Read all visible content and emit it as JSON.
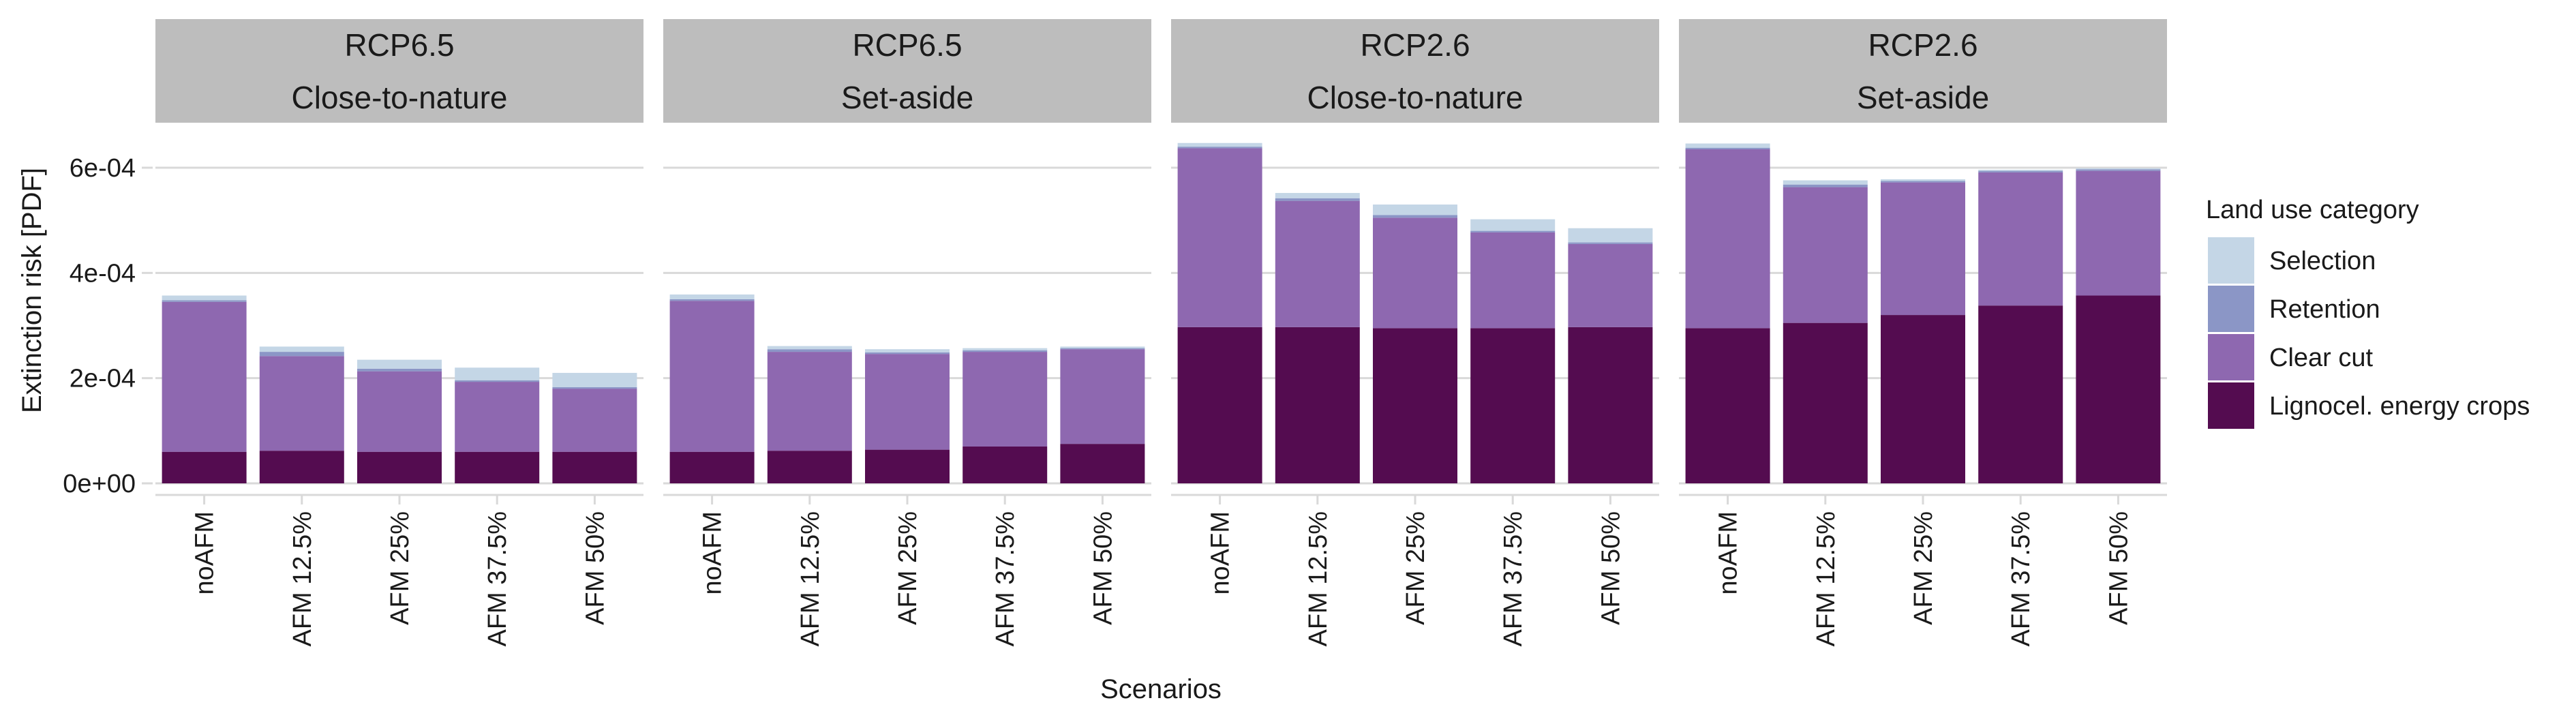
{
  "chart_data": {
    "type": "bar",
    "stacked": true,
    "facets": [
      {
        "strip": [
          "RCP6.5",
          "Close-to-nature"
        ]
      },
      {
        "strip": [
          "RCP6.5",
          "Set-aside"
        ]
      },
      {
        "strip": [
          "RCP2.6",
          "Close-to-nature"
        ]
      },
      {
        "strip": [
          "RCP2.6",
          "Set-aside"
        ]
      }
    ],
    "categories": [
      "noAFM",
      "AFM 12.5%",
      "AFM 25%",
      "AFM 37.5%",
      "AFM 50%"
    ],
    "ylabel": "Extinction risk [PDF]",
    "xlabel": "Scenarios",
    "ylim": [
      0,
      0.00068
    ],
    "yticks": [
      {
        "value": 0,
        "label": "0e+00"
      },
      {
        "value": 0.0002,
        "label": "2e-04"
      },
      {
        "value": 0.0004,
        "label": "4e-04"
      },
      {
        "value": 0.0006,
        "label": "6e-04"
      }
    ],
    "grid": true,
    "legend": {
      "title": "Land use category",
      "placement": "right",
      "items": [
        {
          "name": "Selection",
          "color": "#c4d6e6"
        },
        {
          "name": "Retention",
          "color": "#8b96c6"
        },
        {
          "name": "Clear cut",
          "color": "#8e68b0"
        },
        {
          "name": "Lignocel. energy crops",
          "color": "#540c50"
        }
      ]
    },
    "stack_order": [
      "Lignocel. energy crops",
      "Clear cut",
      "Retention",
      "Selection"
    ],
    "series": [
      {
        "name": "Lignocel. energy crops",
        "values": [
          [
            6e-05,
            6.2e-05,
            6e-05,
            6e-05,
            6e-05
          ],
          [
            6e-05,
            6.2e-05,
            6.4e-05,
            7e-05,
            7.5e-05
          ],
          [
            0.000297,
            0.000297,
            0.000295,
            0.000295,
            0.000297
          ],
          [
            0.000295,
            0.000305,
            0.00032,
            0.000338,
            0.000357
          ]
        ]
      },
      {
        "name": "Clear cut",
        "values": [
          [
            0.000285,
            0.00018,
            0.000153,
            0.000133,
            0.00012
          ],
          [
            0.000287,
            0.000188,
            0.000182,
            0.00018,
            0.00018
          ],
          [
            0.00034,
            0.00024,
            0.00021,
            0.000182,
            0.000158
          ],
          [
            0.00034,
            0.000258,
            0.000252,
            0.000253,
            0.000237
          ]
        ]
      },
      {
        "name": "Retention",
        "values": [
          [
            3e-06,
            8e-06,
            5e-06,
            3e-06,
            3e-06
          ],
          [
            3e-06,
            5e-06,
            3e-06,
            3e-06,
            2e-06
          ],
          [
            3e-06,
            5e-06,
            5e-06,
            3e-06,
            3e-06
          ],
          [
            3e-06,
            5e-06,
            3e-06,
            3e-06,
            3e-06
          ]
        ]
      },
      {
        "name": "Selection",
        "values": [
          [
            9e-06,
            1e-05,
            1.7e-05,
            2.4e-05,
            2.7e-05
          ],
          [
            9e-06,
            6e-06,
            6e-06,
            4e-06,
            3e-06
          ],
          [
            7e-06,
            1e-05,
            2e-05,
            2.2e-05,
            2.7e-05
          ],
          [
            8e-06,
            8e-06,
            3e-06,
            2e-06,
            2e-06
          ]
        ]
      }
    ]
  }
}
